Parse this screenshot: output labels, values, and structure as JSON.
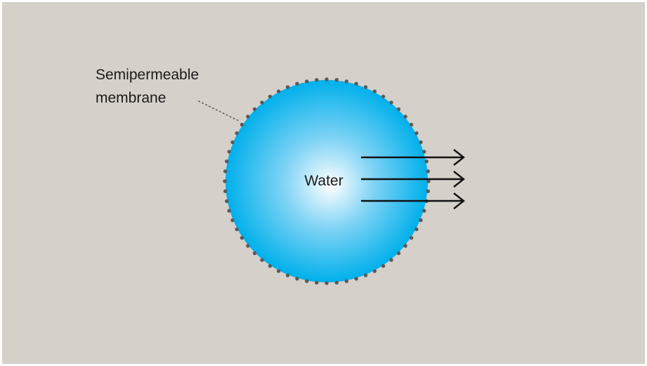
{
  "diagram": {
    "membrane_label_line1": "Semipermeable",
    "membrane_label_line2": "membrane",
    "center_label": "Water",
    "arrow_count": 3
  },
  "colors": {
    "background": "#d6d0ca",
    "sphere_center": "#ffffff",
    "sphere_mid": "#7fd3f5",
    "sphere_edge": "#00b0eb",
    "membrane_dots": "#5a5a5a",
    "arrows": "#111111"
  }
}
